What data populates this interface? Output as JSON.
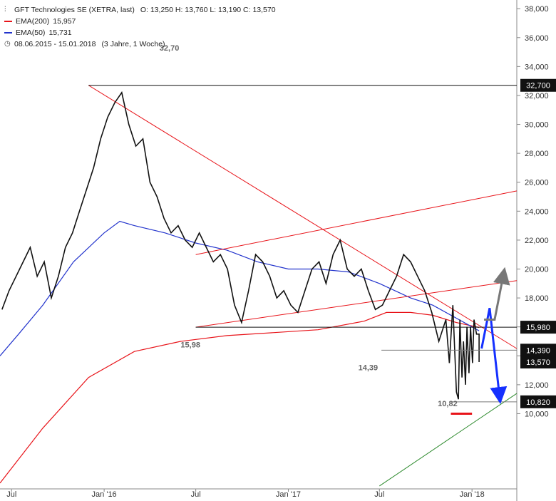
{
  "header": {
    "title": "GFT Technologies SE (XETRA, last)",
    "ohlc": "O: 13,250  H: 13,760  L: 13,190  C: 13,570",
    "ema200": {
      "label": "EMA(200)",
      "value": "15,957",
      "color": "#e8141a"
    },
    "ema50": {
      "label": "EMA(50)",
      "value": "15,731",
      "color": "#2233cc"
    },
    "period": "08.06.2015 - 15.01.2018",
    "period_note": "(3 Jahre, 1 Woche)"
  },
  "chart_data": {
    "type": "candlestick",
    "y_ticks": [
      10,
      12,
      14,
      16,
      18,
      20,
      22,
      24,
      26,
      28,
      30,
      32,
      34,
      36,
      38
    ],
    "y_tick_labels": [
      "10,000",
      "12,000",
      "14,000",
      "16,000",
      "18,000",
      "20,000",
      "22,000",
      "24,000",
      "26,000",
      "28,000",
      "30,000",
      "32,000",
      "34,000",
      "36,000",
      "38,000"
    ],
    "x_ticks": [
      "Jul",
      "Jan '16",
      "Jul",
      "Jan '17",
      "Jul",
      "Jan '18"
    ],
    "x_tick_dates": [
      "2015-07-01",
      "2016-01-01",
      "2016-07-01",
      "2017-01-01",
      "2017-07-01",
      "2018-01-01"
    ],
    "ylim": [
      4.8,
      38.6
    ],
    "x_range": [
      "2015-06-08",
      "2018-03-31"
    ],
    "price_closes": [
      17.2,
      18.5,
      19.5,
      20.5,
      21.5,
      19.5,
      20.5,
      18.0,
      19.5,
      21.5,
      22.5,
      24.0,
      25.5,
      27.0,
      29.0,
      30.5,
      31.5,
      32.2,
      30.0,
      28.5,
      29.0,
      26.0,
      25.0,
      23.5,
      22.5,
      23.0,
      22.0,
      21.5,
      22.5,
      21.5,
      20.5,
      21.0,
      20.0,
      17.5,
      16.3,
      18.5,
      21.0,
      20.5,
      19.5,
      18.0,
      18.5,
      17.5,
      17.0,
      18.5,
      20.0,
      20.5,
      19.0,
      21.0,
      22.0,
      20.0,
      19.5,
      20.0,
      18.5,
      17.2,
      17.5,
      18.5,
      19.5,
      21.0,
      20.5,
      19.5,
      18.5,
      17.0,
      15.0,
      16.5,
      17.5,
      16.5,
      16.0,
      16.5,
      15.5,
      15.0,
      16.0,
      15.5,
      13.5,
      11.5,
      11.0,
      12.5,
      12.0,
      12.8,
      13.5,
      13.57
    ],
    "price_close_dates": [
      "2015-06-12",
      "2015-06-26",
      "2015-07-10",
      "2015-07-24",
      "2015-08-07",
      "2015-08-21",
      "2015-09-04",
      "2015-09-18",
      "2015-10-02",
      "2015-10-16",
      "2015-10-30",
      "2015-11-13",
      "2015-11-27",
      "2015-12-11",
      "2015-12-25",
      "2016-01-08",
      "2016-01-22",
      "2016-02-05",
      "2016-02-19",
      "2016-03-04",
      "2016-03-18",
      "2016-04-01",
      "2016-04-15",
      "2016-04-29",
      "2016-05-13",
      "2016-05-27",
      "2016-06-10",
      "2016-06-24",
      "2016-07-08",
      "2016-07-22",
      "2016-08-05",
      "2016-08-19",
      "2016-09-02",
      "2016-09-16",
      "2016-09-30",
      "2016-10-14",
      "2016-10-28",
      "2016-11-11",
      "2016-11-25",
      "2016-12-09",
      "2016-12-23",
      "2017-01-06",
      "2017-01-20",
      "2017-02-03",
      "2017-02-17",
      "2017-03-03",
      "2017-03-17",
      "2017-03-31",
      "2017-04-14",
      "2017-04-28",
      "2017-05-12",
      "2017-05-26",
      "2017-06-09",
      "2017-06-23",
      "2017-07-07",
      "2017-07-21",
      "2017-08-04",
      "2017-08-18",
      "2017-09-01",
      "2017-09-15",
      "2017-09-29",
      "2017-10-13",
      "2017-10-27",
      "2017-11-10",
      "2017-11-24",
      "2017-12-08",
      "2017-12-22",
      "2018-01-05",
      "2018-01-15",
      "2017-12-15",
      "2017-12-29",
      "2018-01-10",
      "2017-11-17",
      "2017-12-01",
      "2017-12-05",
      "2017-12-12",
      "2017-12-19",
      "2017-12-26",
      "2018-01-02",
      "2018-01-15"
    ],
    "ema200_dates": [
      "2015-06-08",
      "2015-09-01",
      "2015-12-01",
      "2016-03-01",
      "2016-06-01",
      "2016-09-01",
      "2016-12-01",
      "2017-03-01",
      "2017-06-01",
      "2017-07-15",
      "2017-09-01",
      "2017-10-15",
      "2017-12-01",
      "2018-01-15"
    ],
    "ema200_values": [
      5.2,
      9.0,
      12.5,
      14.3,
      15.0,
      15.4,
      15.6,
      15.8,
      16.4,
      17.0,
      17.0,
      16.8,
      16.3,
      15.96
    ],
    "ema50_dates": [
      "2015-06-08",
      "2015-07-15",
      "2015-09-01",
      "2015-11-01",
      "2016-01-01",
      "2016-02-01",
      "2016-03-01",
      "2016-05-01",
      "2016-07-01",
      "2016-09-01",
      "2016-11-01",
      "2017-01-01",
      "2017-03-01",
      "2017-05-01",
      "2017-07-01",
      "2017-09-01",
      "2017-10-15",
      "2017-12-01",
      "2018-01-15"
    ],
    "ema50_values": [
      14.0,
      15.5,
      17.5,
      20.5,
      22.5,
      23.3,
      23.0,
      22.5,
      21.8,
      21.3,
      20.5,
      20.0,
      20.0,
      19.8,
      19.0,
      18.0,
      17.5,
      16.6,
      15.73
    ],
    "levels": [
      {
        "value": 32.7,
        "label": "32,700",
        "annotation": "32,70"
      },
      {
        "value": 15.98,
        "label": "15,980",
        "annotation": "15,98"
      },
      {
        "value": 14.39,
        "label": "14,390",
        "annotation": "14,39"
      },
      {
        "value": 10.82,
        "label": "10,820",
        "annotation": "10,82"
      }
    ],
    "last_price": {
      "value": 13.57,
      "label": "13,570"
    },
    "trendlines": [
      {
        "color": "red",
        "from": [
          "2015-12-01",
          32.7
        ],
        "to": [
          "2018-03-31",
          14.5
        ]
      },
      {
        "color": "red",
        "from": [
          "2016-07-01",
          21.0
        ],
        "to": [
          "2018-03-31",
          25.4
        ]
      },
      {
        "color": "red",
        "from": [
          "2016-07-01",
          15.98
        ],
        "to": [
          "2018-03-31",
          19.2
        ]
      },
      {
        "color": "green",
        "from": [
          "2017-07-01",
          5.0
        ],
        "to": [
          "2018-03-31",
          11.4
        ]
      }
    ],
    "arrows": [
      {
        "color": "blue",
        "path": [
          [
            "2018-01-20",
            14.5
          ],
          [
            "2018-02-05",
            17.3
          ],
          [
            "2018-02-25",
            11.1
          ]
        ]
      },
      {
        "color": "gray",
        "path": [
          [
            "2018-01-25",
            16.5
          ],
          [
            "2018-02-15",
            16.5
          ],
          [
            "2018-03-05",
            19.7
          ]
        ]
      }
    ],
    "support_marker": {
      "color": "red",
      "value": 10.0,
      "from": "2017-11-20",
      "to": "2018-01-01"
    }
  }
}
